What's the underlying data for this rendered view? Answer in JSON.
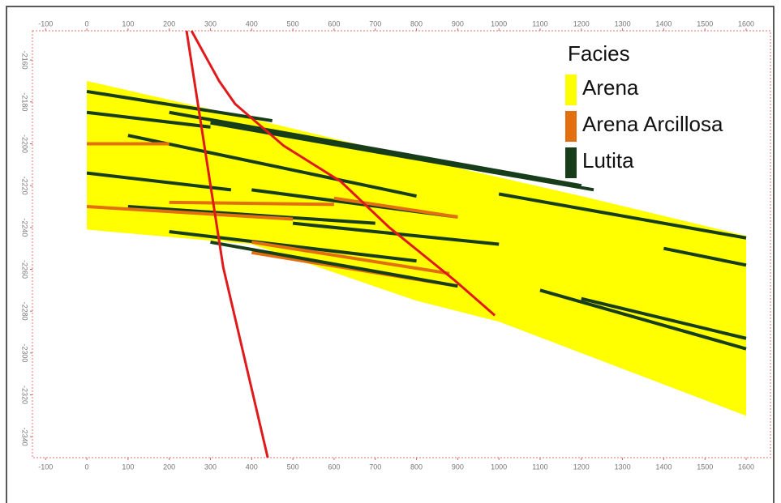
{
  "chart_data": {
    "type": "section",
    "xlim": [
      -132,
      1659
    ],
    "ylim": [
      -2350,
      -2146
    ],
    "xticks": [
      -100,
      0,
      100,
      200,
      300,
      400,
      500,
      600,
      700,
      800,
      900,
      1000,
      1100,
      1200,
      1300,
      1400,
      1500,
      1600
    ],
    "yticks": [
      -2160,
      -2180,
      -2200,
      -2220,
      -2240,
      -2260,
      -2280,
      -2300,
      -2320,
      -2340
    ],
    "legend_title": "Facies",
    "facies": [
      {
        "name": "Arena",
        "color": "#ffff00"
      },
      {
        "name": "Arena Arcillosa",
        "color": "#e2700f"
      },
      {
        "name": "Lutita",
        "color": "#173d1a"
      }
    ],
    "body": {
      "x": [
        0,
        400,
        800,
        1200,
        1600,
        1600,
        1000,
        800,
        400,
        0
      ],
      "y": [
        -2170,
        -2188,
        -2207,
        -2225,
        -2244,
        -2330,
        -2285,
        -2275,
        -2248,
        -2241
      ]
    },
    "bands": [
      {
        "x": [
          0,
          450
        ],
        "y": [
          -2175,
          -2189
        ],
        "facies": 2
      },
      {
        "x": [
          0,
          300
        ],
        "y": [
          -2185,
          -2192
        ],
        "facies": 2
      },
      {
        "x": [
          100,
          800
        ],
        "y": [
          -2196,
          -2225
        ],
        "facies": 2
      },
      {
        "x": [
          200,
          1200
        ],
        "y": [
          -2185,
          -2220
        ],
        "facies": 2
      },
      {
        "x": [
          300,
          1230
        ],
        "y": [
          -2190,
          -2222
        ],
        "facies": 2
      },
      {
        "x": [
          1000,
          1600
        ],
        "y": [
          -2224,
          -2245
        ],
        "facies": 2
      },
      {
        "x": [
          0,
          350
        ],
        "y": [
          -2214,
          -2222
        ],
        "facies": 2
      },
      {
        "x": [
          400,
          900
        ],
        "y": [
          -2222,
          -2235
        ],
        "facies": 2
      },
      {
        "x": [
          100,
          700
        ],
        "y": [
          -2230,
          -2238
        ],
        "facies": 2
      },
      {
        "x": [
          0,
          500
        ],
        "y": [
          -2230,
          -2236
        ],
        "facies": 1
      },
      {
        "x": [
          600,
          900
        ],
        "y": [
          -2226,
          -2235
        ],
        "facies": 1
      },
      {
        "x": [
          0,
          200
        ],
        "y": [
          -2200,
          -2200
        ],
        "facies": 1
      },
      {
        "x": [
          500,
          1000
        ],
        "y": [
          -2238,
          -2248
        ],
        "facies": 2
      },
      {
        "x": [
          200,
          800
        ],
        "y": [
          -2242,
          -2256
        ],
        "facies": 2
      },
      {
        "x": [
          400,
          880
        ],
        "y": [
          -2247,
          -2262
        ],
        "facies": 1
      },
      {
        "x": [
          400,
          900
        ],
        "y": [
          -2252,
          -2268
        ],
        "facies": 1
      },
      {
        "x": [
          300,
          900
        ],
        "y": [
          -2247,
          -2268
        ],
        "facies": 2
      },
      {
        "x": [
          1100,
          1600
        ],
        "y": [
          -2270,
          -2298
        ],
        "facies": 2
      },
      {
        "x": [
          1200,
          1600
        ],
        "y": [
          -2274,
          -2293
        ],
        "facies": 2
      },
      {
        "x": [
          1400,
          1600
        ],
        "y": [
          -2250,
          -2258
        ],
        "facies": 2
      },
      {
        "x": [
          200,
          600
        ],
        "y": [
          -2228,
          -2229
        ],
        "facies": 1
      }
    ],
    "faults": [
      {
        "color": "#e01a1a",
        "x": [
          242,
          331,
          439
        ],
        "y": [
          -2146,
          -2259,
          -2350
        ]
      },
      {
        "color": "#e01a1a",
        "x": [
          254,
          321,
          360,
          478,
          616,
          734,
          891,
          990
        ],
        "y": [
          -2146,
          -2170,
          -2181,
          -2201,
          -2218,
          -2240,
          -2265,
          -2282
        ]
      }
    ]
  }
}
